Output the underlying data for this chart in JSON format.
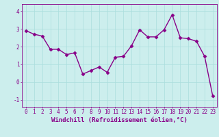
{
  "x": [
    0,
    1,
    2,
    3,
    4,
    5,
    6,
    7,
    8,
    9,
    10,
    11,
    12,
    13,
    14,
    15,
    16,
    17,
    18,
    19,
    20,
    21,
    22,
    23
  ],
  "y": [
    2.9,
    2.7,
    2.6,
    1.85,
    1.85,
    1.55,
    1.65,
    0.45,
    0.65,
    0.85,
    0.55,
    1.4,
    1.45,
    2.05,
    2.95,
    2.55,
    2.55,
    2.95,
    3.8,
    2.5,
    2.45,
    2.3,
    1.45,
    -0.8
  ],
  "line_color": "#880088",
  "marker": "D",
  "marker_size": 2.5,
  "line_width": 1.0,
  "xlabel": "Windchill (Refroidissement éolien,°C)",
  "xlabel_fontsize": 6.5,
  "xlim": [
    -0.5,
    23.5
  ],
  "ylim": [
    -1.4,
    4.4
  ],
  "yticks": [
    -1,
    0,
    1,
    2,
    3,
    4
  ],
  "xticks": [
    0,
    1,
    2,
    3,
    4,
    5,
    6,
    7,
    8,
    9,
    10,
    11,
    12,
    13,
    14,
    15,
    16,
    17,
    18,
    19,
    20,
    21,
    22,
    23
  ],
  "background_color": "#cceeed",
  "grid_color": "#aadddd",
  "tick_color": "#880088",
  "label_color": "#880088",
  "tick_fontsize": 5.5,
  "grid_linewidth": 0.5,
  "spine_color": "#880088"
}
